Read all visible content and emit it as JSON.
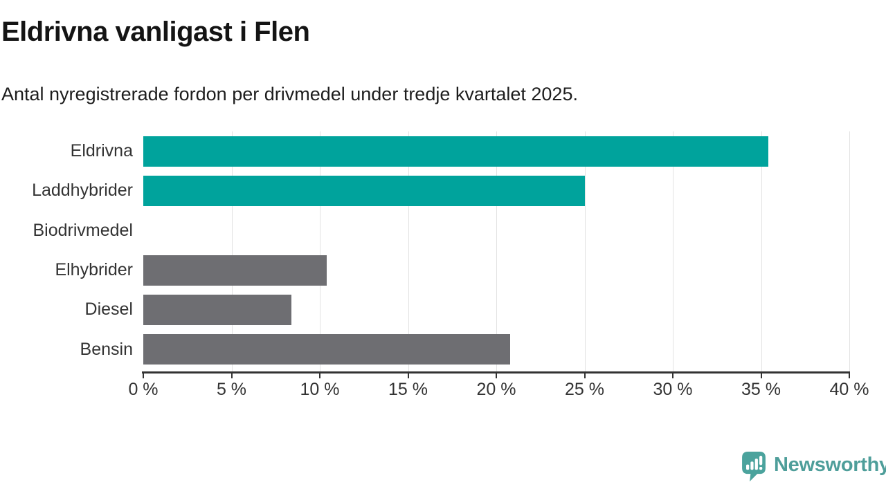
{
  "header": {
    "title": "Eldrivna vanligast i Flen",
    "subtitle": "Antal nyregistrerade fordon per drivmedel under tredje kvartalet 2025."
  },
  "chart_data": {
    "type": "bar",
    "orientation": "horizontal",
    "title": "Eldrivna vanligast i Flen",
    "subtitle": "Antal nyregistrerade fordon per drivmedel under tredje kvartalet 2025.",
    "categories": [
      "Eldrivna",
      "Laddhybrider",
      "Biodrivmedel",
      "Elhybrider",
      "Diesel",
      "Bensin"
    ],
    "values": [
      35.4,
      25.0,
      0,
      10.4,
      8.4,
      20.8
    ],
    "unit": "%",
    "xlim": [
      0,
      40
    ],
    "x_ticks": [
      0,
      5,
      10,
      15,
      20,
      25,
      30,
      35,
      40
    ],
    "x_tick_labels": [
      "0 %",
      "5 %",
      "10 %",
      "15 %",
      "20 %",
      "25 %",
      "30 %",
      "35 %",
      "40 %"
    ],
    "grid": "vertical",
    "legend": "none",
    "bar_colors": [
      "#00A39C",
      "#00A39C",
      "#6E6E72",
      "#6E6E72",
      "#6E6E72",
      "#6E6E72"
    ],
    "colors": {
      "highlight": "#00A39C",
      "default": "#6E6E72",
      "axis": "#333333",
      "gridline": "#e2e2e2"
    }
  },
  "footer": {
    "brand": "Newsworthy",
    "brand_color": "#4E9E9A",
    "logo_icon": "newsworthy-speech-bubble-chart-icon"
  }
}
